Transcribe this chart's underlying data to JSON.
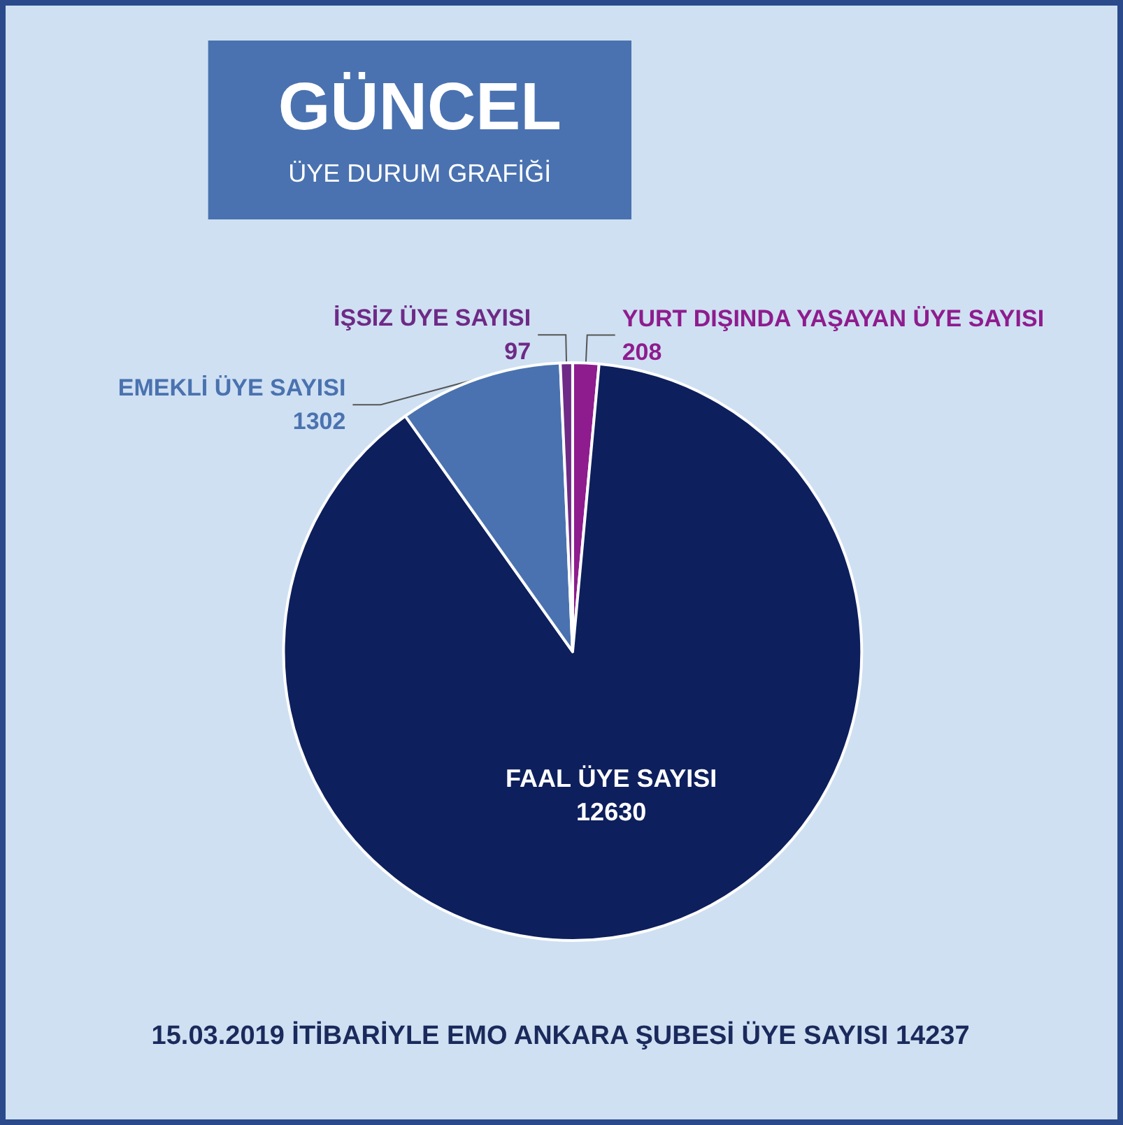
{
  "chart_data": {
    "type": "pie",
    "title": "GÜNCEL",
    "subtitle": "ÜYE DURUM GRAFİĞİ",
    "categories": [
      "YURT DIŞINDA YAŞAYAN ÜYE SAYISI",
      "FAAL ÜYE SAYISI",
      "EMEKLİ ÜYE SAYISI",
      "İŞSİZ ÜYE SAYISI"
    ],
    "values": [
      208,
      12630,
      1302,
      97
    ],
    "colors": [
      "#8e1c8e",
      "#0d1f5c",
      "#4a72b0",
      "#6e2a86"
    ],
    "data_labels": true,
    "annotations": [
      "15.03.2019 İTİBARİYLE EMO ANKARA ŞUBESİ ÜYE SAYISI 14237"
    ],
    "legend": false
  }
}
